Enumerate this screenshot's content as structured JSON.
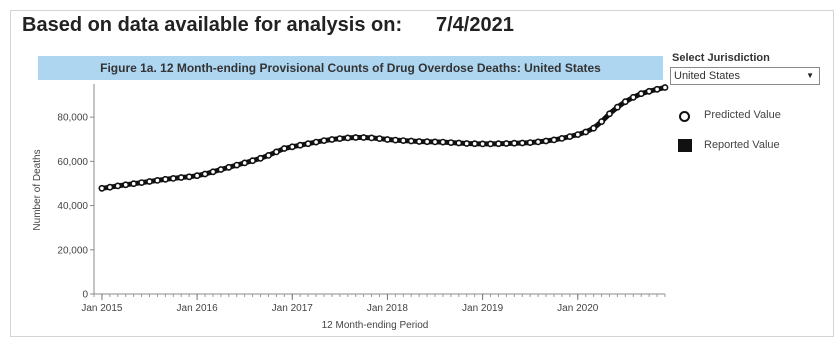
{
  "header": {
    "label": "Based on data available for analysis on:",
    "date": "7/4/2021"
  },
  "jurisdiction": {
    "label": "Select Jurisdiction",
    "selected": "United States",
    "arrow": "▼"
  },
  "legend": {
    "predicted": "Predicted Value",
    "reported": "Reported Value"
  },
  "colors": {
    "title_band": "#aed6f1",
    "series": "#111111"
  },
  "chart_data": {
    "type": "line",
    "title": "Figure 1a. 12 Month-ending Provisional Counts of Drug Overdose Deaths: United States",
    "xlabel": "12 Month-ending Period",
    "ylabel": "Number of Deaths",
    "ylim": [
      0,
      95000
    ],
    "yticks": [
      0,
      20000,
      40000,
      60000,
      80000
    ],
    "ytick_labels": [
      "0",
      "20,000",
      "40,000",
      "60,000",
      "80,000"
    ],
    "xlim": [
      "2014-12",
      "2020-12"
    ],
    "xticks": [
      "2015-01",
      "2016-01",
      "2017-01",
      "2018-01",
      "2019-01",
      "2020-01"
    ],
    "xtick_labels": [
      "Jan 2015",
      "Jan 2016",
      "Jan 2017",
      "Jan 2018",
      "Jan 2019",
      "Jan 2020"
    ],
    "grid": false,
    "legend_position": "right",
    "x": [
      "2015-01",
      "2015-02",
      "2015-03",
      "2015-04",
      "2015-05",
      "2015-06",
      "2015-07",
      "2015-08",
      "2015-09",
      "2015-10",
      "2015-11",
      "2015-12",
      "2016-01",
      "2016-02",
      "2016-03",
      "2016-04",
      "2016-05",
      "2016-06",
      "2016-07",
      "2016-08",
      "2016-09",
      "2016-10",
      "2016-11",
      "2016-12",
      "2017-01",
      "2017-02",
      "2017-03",
      "2017-04",
      "2017-05",
      "2017-06",
      "2017-07",
      "2017-08",
      "2017-09",
      "2017-10",
      "2017-11",
      "2017-12",
      "2018-01",
      "2018-02",
      "2018-03",
      "2018-04",
      "2018-05",
      "2018-06",
      "2018-07",
      "2018-08",
      "2018-09",
      "2018-10",
      "2018-11",
      "2018-12",
      "2019-01",
      "2019-02",
      "2019-03",
      "2019-04",
      "2019-05",
      "2019-06",
      "2019-07",
      "2019-08",
      "2019-09",
      "2019-10",
      "2019-11",
      "2019-12",
      "2020-01",
      "2020-02",
      "2020-03",
      "2020-04",
      "2020-05",
      "2020-06",
      "2020-07",
      "2020-08",
      "2020-09",
      "2020-10",
      "2020-11",
      "2020-12"
    ],
    "series": [
      {
        "name": "Reported Value",
        "values": [
          47800,
          48300,
          48900,
          49400,
          49900,
          50400,
          50900,
          51400,
          51900,
          52300,
          52700,
          53000,
          53500,
          54300,
          55300,
          56300,
          57300,
          58300,
          59300,
          60300,
          61400,
          62700,
          64300,
          65800,
          66600,
          67300,
          68000,
          68700,
          69400,
          69900,
          70300,
          70600,
          70800,
          70800,
          70600,
          70300,
          69900,
          69600,
          69400,
          69200,
          69000,
          68900,
          68800,
          68700,
          68500,
          68300,
          68100,
          68000,
          67900,
          67900,
          68000,
          68100,
          68200,
          68300,
          68500,
          68800,
          69200,
          69700,
          70400,
          71200,
          72100,
          73300,
          75000,
          78000,
          81500,
          84500,
          87000,
          89000,
          90600,
          91700,
          92600,
          93400
        ]
      },
      {
        "name": "Predicted Value",
        "values": [
          47800,
          48300,
          48900,
          49400,
          49900,
          50400,
          50900,
          51400,
          51900,
          52300,
          52700,
          53000,
          53500,
          54300,
          55300,
          56300,
          57300,
          58300,
          59300,
          60300,
          61400,
          62700,
          64300,
          65800,
          66600,
          67300,
          68000,
          68700,
          69400,
          69900,
          70300,
          70600,
          70800,
          70800,
          70600,
          70300,
          69900,
          69600,
          69400,
          69200,
          69000,
          68900,
          68800,
          68700,
          68500,
          68300,
          68100,
          68000,
          67900,
          67900,
          68000,
          68100,
          68200,
          68300,
          68500,
          68800,
          69200,
          69700,
          70400,
          71200,
          72100,
          73300,
          75000,
          78000,
          81500,
          84500,
          87000,
          89000,
          90600,
          91700,
          92600,
          93400
        ]
      }
    ]
  }
}
